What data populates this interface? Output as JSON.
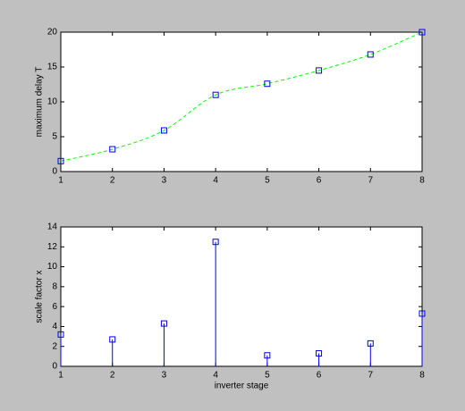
{
  "chart_data": [
    {
      "type": "line",
      "ylabel": "maximum delay T",
      "x": [
        1,
        2,
        3,
        4,
        5,
        6,
        7,
        8
      ],
      "series": [
        {
          "values": [
            1.5,
            3.2,
            5.9,
            11.0,
            12.6,
            14.5,
            16.8,
            20.0
          ],
          "line_color": "#00ff00",
          "marker_color": "#0000ff",
          "line_style": "dashed",
          "smooth": true
        }
      ],
      "xlim": [
        1,
        8
      ],
      "xticks": [
        1,
        2,
        3,
        4,
        5,
        6,
        7,
        8
      ],
      "ylim": [
        0,
        20
      ],
      "yticks": [
        0,
        5,
        10,
        15,
        20
      ]
    },
    {
      "type": "stem",
      "xlabel": "inverter stage",
      "ylabel": "scale factor x",
      "x": [
        1,
        2,
        3,
        4,
        5,
        6,
        7,
        8
      ],
      "series": [
        {
          "values": [
            3.2,
            2.7,
            4.3,
            12.5,
            1.1,
            1.3,
            2.3,
            5.3
          ],
          "line_color": "#0000ff",
          "marker_color": "#0000ff"
        }
      ],
      "xlim": [
        1,
        8
      ],
      "xticks": [
        1,
        2,
        3,
        4,
        5,
        6,
        7,
        8
      ],
      "ylim": [
        0,
        14
      ],
      "yticks": [
        0,
        2,
        4,
        6,
        8,
        10,
        12,
        14
      ]
    }
  ]
}
